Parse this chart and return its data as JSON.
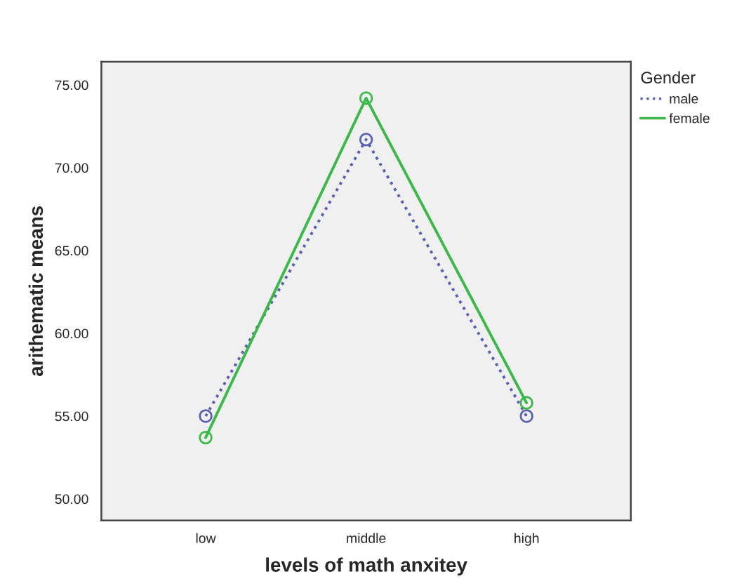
{
  "chart_data": {
    "type": "line",
    "xlabel": "levels of math anxitey",
    "ylabel": "arithematic means",
    "legend_title": "Gender",
    "legend": "top right",
    "categories": [
      "low",
      "middle",
      "high"
    ],
    "series": [
      {
        "name": "male",
        "color": "#5a5fb0",
        "values": [
          55.0,
          71.7,
          55.0
        ],
        "line_style": "dotted",
        "marker": "circle"
      },
      {
        "name": "female",
        "color": "#3cb84a",
        "values": [
          53.7,
          74.2,
          55.8
        ],
        "line_style": "solid",
        "marker": "circle"
      }
    ],
    "ylim": [
      48.7,
      76.4
    ],
    "yticks": [
      {
        "value": 50,
        "label": "50.00"
      },
      {
        "value": 55,
        "label": "55.00"
      },
      {
        "value": 60,
        "label": "60.00"
      },
      {
        "value": 65,
        "label": "65.00"
      },
      {
        "value": 70,
        "label": "70.00"
      },
      {
        "value": 75,
        "label": "75.00"
      }
    ],
    "grid": false
  }
}
